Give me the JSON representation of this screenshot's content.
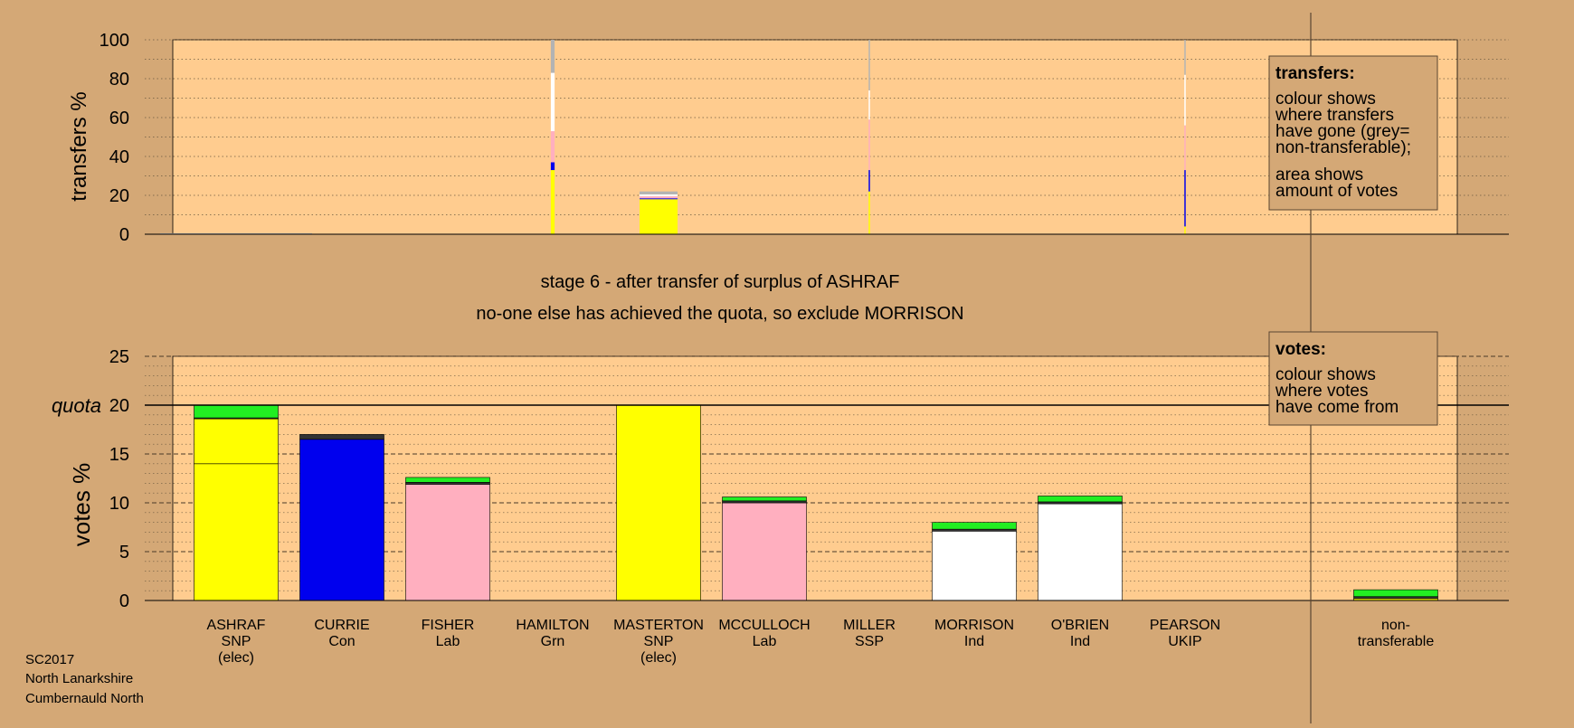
{
  "colors": {
    "background": "#d4a876",
    "plot_bg": "#ffcc8f",
    "SNP": "#ffff00",
    "Con": "#0000ee",
    "Lab": "#ffafbf",
    "Grn": "#00ff00",
    "Ind": "#ffffff",
    "SSP": "#ff0000",
    "UKIP": "#800080",
    "green": "#22ee22",
    "dark": "#333333",
    "non_transferable": "#b3b3b3"
  },
  "captions": {
    "stage": "stage 6 - after transfer of surplus of ASHRAF",
    "action": "no-one else has achieved the quota, so exclude MORRISON"
  },
  "footer": [
    "SC2017",
    "North Lanarkshire",
    "Cumbernauld North"
  ],
  "legend_transfers": {
    "title": "transfers:",
    "lines": [
      "colour shows",
      "where transfers",
      "have gone (grey=",
      "non-transferable);",
      "area shows",
      "amount of votes"
    ]
  },
  "legend_votes": {
    "title": "votes:",
    "lines": [
      "colour shows",
      "where votes",
      "have come from"
    ]
  },
  "chart_data": [
    {
      "type": "bar",
      "title": "transfers",
      "ylabel": "transfers %",
      "ylim": [
        0,
        100
      ],
      "yticks": [
        0,
        20,
        40,
        60,
        80,
        100
      ],
      "grid": "dotted horizontal every 10",
      "legend": "top-right",
      "columns": [
        {
          "candidate": "ASHRAF",
          "width_pct_of_vote": 16.0,
          "segments": [
            {
              "color_key": "non_transferable",
              "value": 0.5
            }
          ]
        },
        {
          "candidate": "HAMILTON",
          "width_pct_of_vote": 0.4,
          "segments": [
            {
              "color_key": "SNP",
              "value": 33
            },
            {
              "color_key": "Con",
              "value": 4
            },
            {
              "color_key": "Lab",
              "value": 16
            },
            {
              "color_key": "Ind",
              "value": 30
            },
            {
              "color_key": "non_transferable",
              "value": 17
            }
          ]
        },
        {
          "candidate": "MASTERTON",
          "width_pct_of_vote": 4.0,
          "segments": [
            {
              "color_key": "SNP",
              "value": 18
            },
            {
              "color_key": "Con",
              "value": 0.5
            },
            {
              "color_key": "Lab",
              "value": 1
            },
            {
              "color_key": "Ind",
              "value": 1
            },
            {
              "color_key": "non_transferable",
              "value": 1.5
            }
          ]
        },
        {
          "candidate": "MILLER",
          "width_pct_of_vote": 0.05,
          "segments": [
            {
              "color_key": "SNP",
              "value": 22
            },
            {
              "color_key": "Con",
              "value": 11
            },
            {
              "color_key": "Lab",
              "value": 26
            },
            {
              "color_key": "Ind",
              "value": 15
            },
            {
              "color_key": "non_transferable",
              "value": 26
            }
          ]
        },
        {
          "candidate": "PEARSON",
          "width_pct_of_vote": 0.08,
          "segments": [
            {
              "color_key": "SNP",
              "value": 4
            },
            {
              "color_key": "Con",
              "value": 29
            },
            {
              "color_key": "Lab",
              "value": 23
            },
            {
              "color_key": "Ind",
              "value": 26
            },
            {
              "color_key": "non_transferable",
              "value": 18
            }
          ]
        }
      ]
    },
    {
      "type": "bar",
      "title": "votes",
      "ylabel": "votes %",
      "ylim": [
        0,
        25
      ],
      "yticks": [
        0,
        5,
        10,
        15,
        20,
        25
      ],
      "quota": 20,
      "quota_label": "quota",
      "grid": "dashed every 5, dotted every 1",
      "legend": "top-right",
      "categories": [
        "ASHRAF\nSNP\n(elec)",
        "CURRIE\nCon",
        "FISHER\nLab",
        "HAMILTON\nGrn",
        "MASTERTON\nSNP\n(elec)",
        "MCCULLOCH\nLab",
        "MILLER\nSSP",
        "MORRISON\nInd",
        "O'BRIEN\nInd",
        "PEARSON\nUKIP",
        "",
        "non-\ntransferable"
      ],
      "bars": [
        {
          "segments": [
            {
              "color_key": "SNP",
              "value": 14.0
            },
            {
              "color_key": "SNP",
              "value": 4.6
            },
            {
              "color_key": "dark",
              "value": 0.1
            },
            {
              "color_key": "green",
              "value": 1.3
            }
          ]
        },
        {
          "segments": [
            {
              "color_key": "Con",
              "value": 16.5
            },
            {
              "color_key": "dark",
              "value": 0.5
            }
          ]
        },
        {
          "segments": [
            {
              "color_key": "Lab",
              "value": 11.9
            },
            {
              "color_key": "dark",
              "value": 0.2
            },
            {
              "color_key": "green",
              "value": 0.5
            }
          ]
        },
        {
          "segments": []
        },
        {
          "segments": [
            {
              "color_key": "SNP",
              "value": 20.0
            }
          ]
        },
        {
          "segments": [
            {
              "color_key": "Lab",
              "value": 10.0
            },
            {
              "color_key": "dark",
              "value": 0.2
            },
            {
              "color_key": "green",
              "value": 0.4
            }
          ]
        },
        {
          "segments": []
        },
        {
          "segments": [
            {
              "color_key": "Ind",
              "value": 7.1
            },
            {
              "color_key": "dark",
              "value": 0.2
            },
            {
              "color_key": "green",
              "value": 0.7
            }
          ]
        },
        {
          "segments": [
            {
              "color_key": "Ind",
              "value": 9.9
            },
            {
              "color_key": "dark",
              "value": 0.2
            },
            {
              "color_key": "green",
              "value": 0.6
            }
          ]
        },
        {
          "segments": []
        },
        {
          "segments": []
        },
        {
          "segments": [
            {
              "color_key": "SNP",
              "value": 0.2
            },
            {
              "color_key": "dark",
              "value": 0.2
            },
            {
              "color_key": "green",
              "value": 0.7
            }
          ]
        }
      ]
    }
  ]
}
